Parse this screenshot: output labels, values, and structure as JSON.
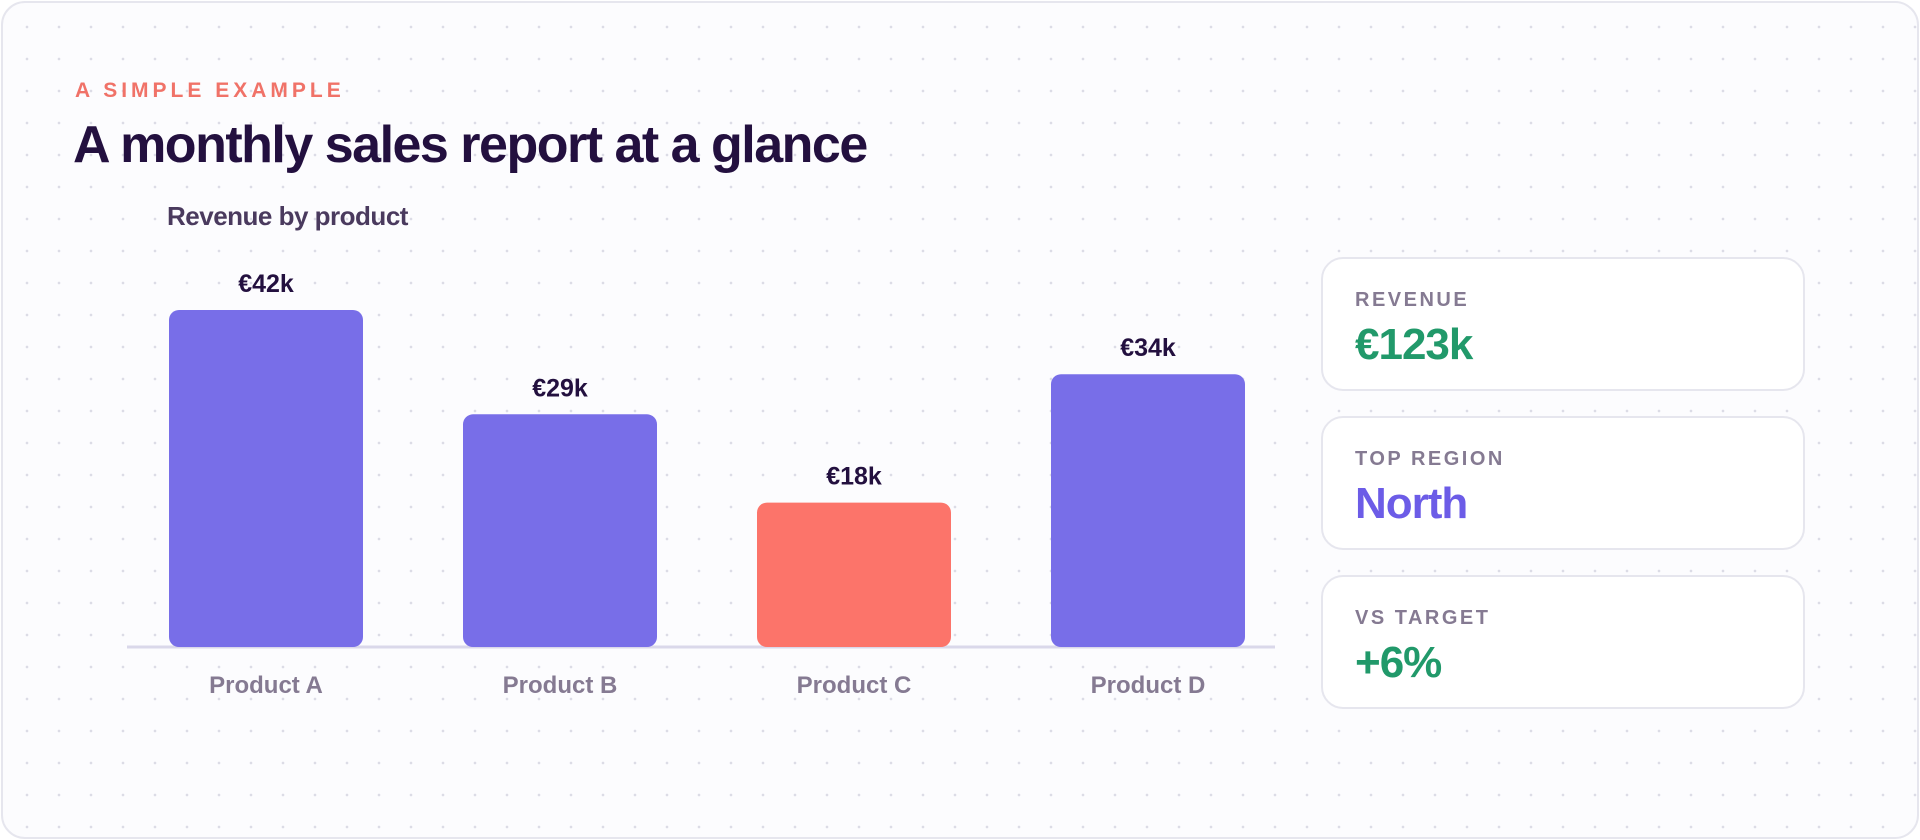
{
  "header": {
    "eyebrow": "A SIMPLE EXAMPLE",
    "title": "A monthly sales report at a glance"
  },
  "chart_data": {
    "type": "bar",
    "title": "Revenue by product",
    "xlabel": "",
    "ylabel": "",
    "categories": [
      "Product A",
      "Product B",
      "Product C",
      "Product D"
    ],
    "values": [
      42,
      29,
      18,
      34
    ],
    "value_labels": [
      "€42k",
      "€29k",
      "€18k",
      "€34k"
    ],
    "unit": "€k",
    "ylim": [
      0,
      42
    ],
    "highlight_index": 2,
    "colors": {
      "bar": "#786ee8",
      "highlight": "#fc746a",
      "baseline": "#dad8ea"
    },
    "grid": false,
    "legend": "none"
  },
  "stats": [
    {
      "label": "REVENUE",
      "value": "€123k",
      "color": "#21996a"
    },
    {
      "label": "TOP REGION",
      "value": "North",
      "color": "#6c5ce7"
    },
    {
      "label": "VS TARGET",
      "value": "+6%",
      "color": "#21996a"
    }
  ]
}
